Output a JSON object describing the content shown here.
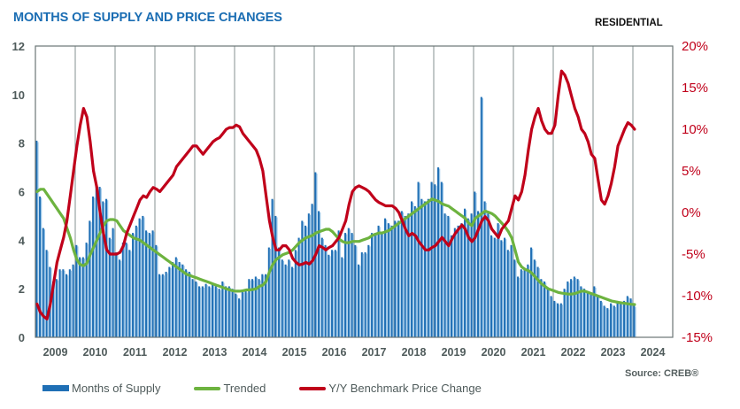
{
  "header": {
    "title": "MONTHS OF SUPPLY AND PRICE CHANGES",
    "subtitle": "RESIDENTIAL",
    "source": "Source: CREB®"
  },
  "legend": [
    {
      "label": "Months of Supply",
      "color": "#1f6fb5"
    },
    {
      "label": "Trended",
      "color": "#6db33f"
    },
    {
      "label": "Y/Y Benchmark Price Change",
      "color": "#c0001a"
    }
  ],
  "chart_data": {
    "type": "bar",
    "title": "MONTHS OF SUPPLY AND PRICE CHANGES",
    "subtitle": "RESIDENTIAL",
    "xlabel": "",
    "ylabel": "Months of Supply",
    "y2label": "Y/Y Benchmark Price Change",
    "ylim": [
      0,
      12
    ],
    "y2lim": [
      -15,
      20
    ],
    "yticks": [
      "0",
      "2",
      "4",
      "6",
      "8",
      "10",
      "12"
    ],
    "y2ticks": [
      "-15%",
      "-10%",
      "-5%",
      "0%",
      "5%",
      "10%",
      "15%",
      "20%"
    ],
    "categories": [
      "2009",
      "2010",
      "2011",
      "2012",
      "2013",
      "2014",
      "2015",
      "2016",
      "2017",
      "2018",
      "2019",
      "2020",
      "2021",
      "2022",
      "2023",
      "2024"
    ],
    "frequency": "monthly, Jan 2009 - Jan 2024",
    "grid": "vertical at year boundaries",
    "legend_position": "bottom",
    "series": [
      {
        "name": "Months of Supply",
        "type": "bar",
        "axis": "left",
        "values": [
          8.1,
          5.8,
          4.5,
          3.6,
          2.9,
          2.3,
          2.4,
          2.8,
          2.8,
          2.6,
          2.8,
          3.0,
          3.8,
          3.3,
          3.3,
          3.9,
          4.8,
          5.8,
          6.2,
          6.2,
          5.6,
          5.7,
          4.1,
          4.5,
          3.5,
          3.2,
          3.9,
          3.9,
          3.6,
          4.3,
          4.6,
          4.9,
          5.0,
          4.4,
          4.3,
          4.4,
          3.8,
          2.6,
          2.6,
          2.7,
          2.9,
          3.1,
          3.3,
          3.1,
          3.0,
          2.8,
          2.7,
          2.4,
          2.3,
          2.1,
          2.1,
          2.2,
          2.1,
          2.2,
          2.1,
          2.0,
          2.3,
          2.1,
          2.1,
          2.0,
          1.8,
          1.6,
          1.9,
          1.9,
          2.4,
          2.4,
          2.5,
          2.4,
          2.6,
          2.6,
          3.7,
          5.7,
          5.0,
          3.7,
          3.2,
          3.0,
          3.2,
          2.9,
          3.6,
          4.1,
          4.8,
          4.6,
          5.1,
          5.5,
          6.8,
          5.2,
          4.1,
          3.8,
          3.4,
          3.6,
          3.6,
          4.4,
          3.3,
          4.3,
          4.5,
          4.3,
          3.8,
          3.0,
          3.5,
          3.5,
          3.8,
          4.3,
          4.3,
          4.6,
          4.3,
          4.9,
          4.7,
          4.6,
          4.8,
          4.8,
          5.2,
          5.0,
          5.1,
          5.6,
          5.4,
          6.4,
          5.7,
          5.6,
          5.7,
          6.4,
          6.3,
          7.0,
          6.4,
          5.1,
          5.0,
          4.2,
          4.5,
          4.6,
          4.7,
          5.3,
          4.9,
          5.1,
          6.0,
          5.2,
          9.9,
          5.6,
          5.1,
          4.2,
          4.1,
          4.7,
          4.0,
          4.1,
          3.6,
          3.8,
          3.2,
          2.5,
          2.8,
          2.8,
          3.0,
          3.7,
          3.2,
          2.9,
          2.4,
          2.3,
          2.0,
          1.7,
          1.5,
          1.4,
          1.4,
          2.0,
          2.3,
          2.4,
          2.5,
          2.4,
          2.1,
          2.0,
          1.9,
          1.8,
          2.1,
          1.7,
          1.5,
          1.3,
          1.2,
          1.4,
          1.3,
          1.5,
          1.4,
          1.5,
          1.7,
          1.6,
          1.3
        ]
      },
      {
        "name": "Trended",
        "type": "line",
        "axis": "left",
        "values": [
          6.0,
          6.1,
          6.1,
          5.9,
          5.7,
          5.5,
          5.3,
          5.1,
          4.9,
          4.5,
          4.1,
          3.6,
          3.2,
          3.0,
          2.95,
          3.05,
          3.4,
          3.7,
          4.0,
          4.3,
          4.6,
          4.8,
          4.85,
          4.85,
          4.8,
          4.6,
          4.4,
          4.3,
          4.2,
          4.1,
          4.05,
          4.0,
          3.9,
          3.8,
          3.7,
          3.6,
          3.5,
          3.4,
          3.3,
          3.2,
          3.1,
          3.0,
          2.9,
          2.8,
          2.7,
          2.6,
          2.55,
          2.5,
          2.45,
          2.4,
          2.35,
          2.3,
          2.25,
          2.2,
          2.15,
          2.1,
          2.05,
          2.0,
          1.95,
          1.92,
          1.9,
          1.9,
          1.92,
          1.95,
          1.95,
          1.97,
          2.0,
          2.1,
          2.15,
          2.3,
          2.7,
          3.0,
          3.2,
          3.3,
          3.4,
          3.45,
          3.5,
          3.6,
          3.75,
          3.9,
          4.0,
          4.1,
          4.15,
          4.2,
          4.3,
          4.35,
          4.4,
          4.45,
          4.45,
          4.35,
          4.2,
          4.05,
          3.95,
          3.9,
          3.9,
          3.95,
          3.95,
          3.95,
          4.0,
          4.05,
          4.1,
          4.2,
          4.25,
          4.3,
          4.3,
          4.35,
          4.4,
          4.5,
          4.6,
          4.7,
          4.8,
          4.9,
          5.0,
          5.1,
          5.2,
          5.3,
          5.4,
          5.5,
          5.6,
          5.7,
          5.65,
          5.6,
          5.5,
          5.45,
          5.4,
          5.3,
          5.2,
          5.1,
          5.0,
          4.9,
          4.7,
          4.6,
          4.9,
          5.0,
          5.1,
          5.2,
          5.15,
          5.1,
          5.0,
          4.85,
          4.7,
          4.55,
          4.35,
          4.1,
          3.6,
          3.1,
          2.9,
          2.8,
          2.75,
          2.65,
          2.5,
          2.35,
          2.2,
          2.1,
          2.0,
          1.95,
          1.9,
          1.85,
          1.82,
          1.8,
          1.78,
          1.78,
          1.8,
          1.85,
          1.9,
          1.9,
          1.85,
          1.8,
          1.75,
          1.7,
          1.65,
          1.6,
          1.55,
          1.5,
          1.47,
          1.44,
          1.42,
          1.4,
          1.38,
          1.36,
          1.35
        ]
      },
      {
        "name": "Y/Y Benchmark Price Change",
        "type": "line",
        "axis": "right",
        "unit": "%",
        "values": [
          -11.0,
          -12.0,
          -12.5,
          -12.8,
          -11.0,
          -8.5,
          -6.0,
          -4.5,
          -3.0,
          -1.0,
          2.0,
          5.0,
          8.0,
          10.5,
          12.5,
          11.5,
          8.5,
          5.0,
          3.0,
          0.0,
          -2.5,
          -4.5,
          -5.0,
          -5.0,
          -5.0,
          -4.8,
          -4.0,
          -2.5,
          -1.5,
          -0.5,
          0.5,
          1.5,
          2.0,
          1.8,
          2.5,
          3.0,
          2.8,
          2.5,
          3.0,
          3.5,
          4.0,
          4.5,
          5.5,
          6.0,
          6.5,
          7.0,
          7.5,
          8.0,
          8.0,
          7.5,
          7.0,
          7.5,
          8.0,
          8.5,
          8.8,
          9.0,
          9.5,
          10.0,
          10.2,
          10.2,
          10.5,
          10.3,
          9.5,
          9.0,
          8.5,
          8.0,
          7.5,
          6.5,
          5.0,
          2.0,
          -1.0,
          -3.0,
          -4.5,
          -4.5,
          -4.0,
          -4.0,
          -4.5,
          -5.5,
          -6.0,
          -6.3,
          -6.2,
          -6.0,
          -6.2,
          -5.8,
          -5.0,
          -4.0,
          -4.2,
          -4.5,
          -4.2,
          -4.0,
          -3.5,
          -3.0,
          -2.0,
          -1.0,
          1.0,
          2.5,
          3.0,
          3.2,
          3.0,
          2.8,
          2.5,
          2.0,
          1.5,
          1.2,
          1.0,
          0.8,
          0.8,
          0.8,
          0.5,
          0.0,
          -1.0,
          -2.0,
          -2.8,
          -2.5,
          -2.8,
          -3.5,
          -4.0,
          -4.5,
          -4.5,
          -4.2,
          -4.0,
          -3.5,
          -3.0,
          -3.5,
          -4.0,
          -3.2,
          -2.5,
          -2.0,
          -1.5,
          -2.0,
          -3.0,
          -3.5,
          -3.0,
          -2.0,
          -1.0,
          -0.5,
          -1.0,
          -2.0,
          -2.5,
          -3.0,
          -2.0,
          -1.5,
          -1.0,
          0.5,
          2.0,
          1.5,
          2.5,
          4.5,
          7.5,
          10.0,
          11.5,
          12.5,
          11.0,
          10.0,
          9.5,
          9.5,
          10.5,
          14.0,
          17.0,
          16.5,
          15.5,
          14.0,
          12.5,
          11.5,
          10.0,
          9.5,
          8.5,
          7.0,
          6.5,
          4.0,
          1.5,
          1.0,
          2.0,
          3.5,
          5.5,
          8.0,
          9.0,
          10.0,
          10.8,
          10.5,
          10.0
        ]
      }
    ]
  }
}
